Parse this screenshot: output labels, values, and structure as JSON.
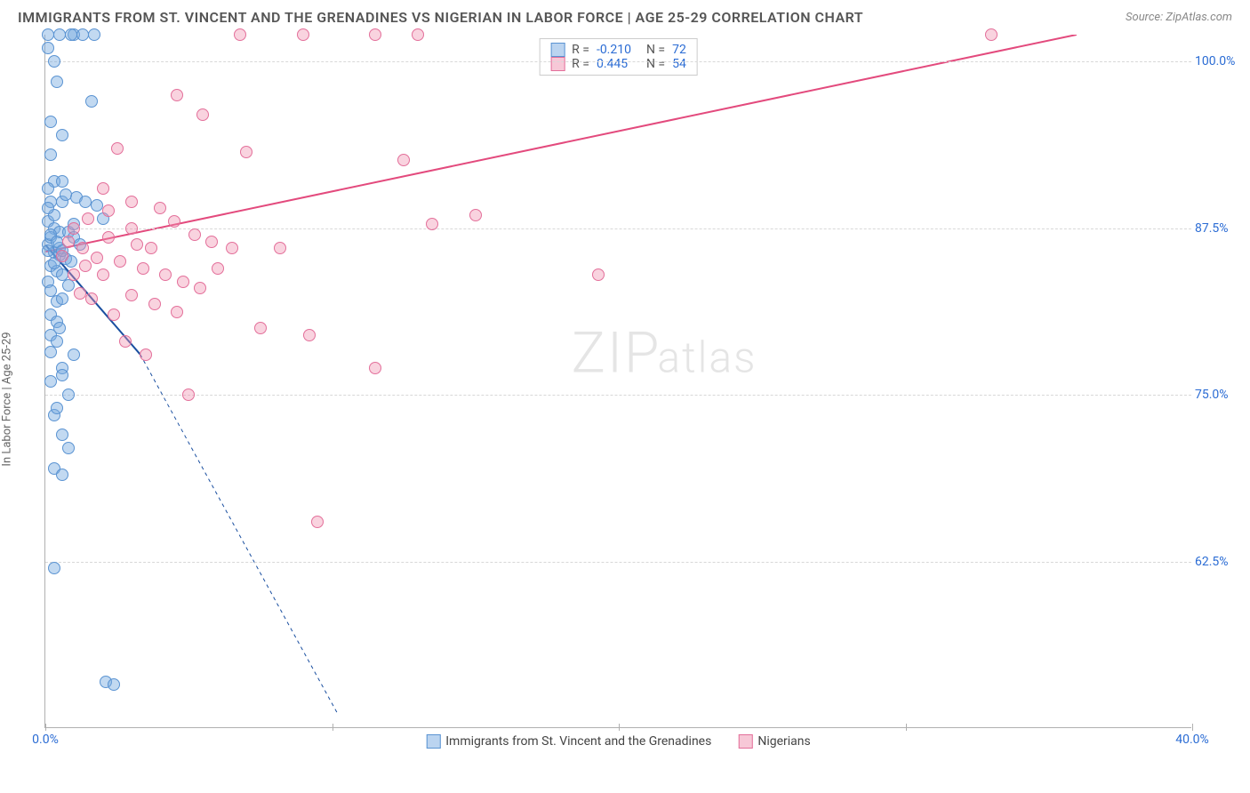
{
  "title": "IMMIGRANTS FROM ST. VINCENT AND THE GRENADINES VS NIGERIAN IN LABOR FORCE | AGE 25-29 CORRELATION CHART",
  "source": "Source: ZipAtlas.com",
  "watermark_zip": "ZIP",
  "watermark_atlas": "atlas",
  "yaxis_label": "In Labor Force | Age 25-29",
  "chart": {
    "type": "scatter",
    "xlim": [
      0,
      40
    ],
    "ylim": [
      50,
      102
    ],
    "ytick_values": [
      62.5,
      75.0,
      87.5,
      100.0
    ],
    "ytick_labels": [
      "62.5%",
      "75.0%",
      "87.5%",
      "100.0%"
    ],
    "xtick_values": [
      0,
      10,
      20,
      30,
      40
    ],
    "xtick_labels": [
      "0.0%",
      "",
      "",
      "",
      "40.0%"
    ],
    "background_color": "#ffffff",
    "grid_color": "#d8d8d8",
    "axis_color": "#b0b0b0",
    "label_color": "#2b6cd4",
    "marker_size": 14,
    "marker_opacity": 0.45
  },
  "series_a": {
    "name": "Immigrants from St. Vincent and the Grenadines",
    "fill": "#78aae1",
    "stroke": "#5a93d2",
    "R": "-0.210",
    "N": "72",
    "trend": {
      "x1": 0,
      "y1": 86.2,
      "x2": 3.3,
      "y2": 78.0,
      "color": "#1a4fa0",
      "width": 2,
      "dash": ""
    },
    "trend_ext": {
      "x1": 3.3,
      "y1": 78.0,
      "x2": 10.2,
      "y2": 51.0,
      "color": "#1a4fa0",
      "width": 1,
      "dash": "4,4"
    },
    "points": [
      [
        0.1,
        102
      ],
      [
        0.5,
        102
      ],
      [
        1.0,
        102
      ],
      [
        1.3,
        102
      ],
      [
        1.7,
        102
      ],
      [
        0.9,
        102
      ],
      [
        1.6,
        97.0
      ],
      [
        0.6,
        94.5
      ],
      [
        0.2,
        93.0
      ],
      [
        0.2,
        95.5
      ],
      [
        0.3,
        91.0
      ],
      [
        0.6,
        91.0
      ],
      [
        0.2,
        89.5
      ],
      [
        0.6,
        89.5
      ],
      [
        1.1,
        89.8
      ],
      [
        1.4,
        89.5
      ],
      [
        1.8,
        89.2
      ],
      [
        2.0,
        88.2
      ],
      [
        0.1,
        88.0
      ],
      [
        0.3,
        87.5
      ],
      [
        0.5,
        87.2
      ],
      [
        0.8,
        87.2
      ],
      [
        1.0,
        86.8
      ],
      [
        1.2,
        86.3
      ],
      [
        0.1,
        86.3
      ],
      [
        0.3,
        85.7
      ],
      [
        0.5,
        85.5
      ],
      [
        0.7,
        85.2
      ],
      [
        0.9,
        85.0
      ],
      [
        0.2,
        84.7
      ],
      [
        0.4,
        84.3
      ],
      [
        0.6,
        84.0
      ],
      [
        0.1,
        83.5
      ],
      [
        0.2,
        82.8
      ],
      [
        0.4,
        82.0
      ],
      [
        0.6,
        82.2
      ],
      [
        0.2,
        81.0
      ],
      [
        0.4,
        80.5
      ],
      [
        0.2,
        79.5
      ],
      [
        0.4,
        79.0
      ],
      [
        1.0,
        78.0
      ],
      [
        0.6,
        77.0
      ],
      [
        0.2,
        76.0
      ],
      [
        0.8,
        75.0
      ],
      [
        0.3,
        73.5
      ],
      [
        0.6,
        72.0
      ],
      [
        0.8,
        71.0
      ],
      [
        0.3,
        69.5
      ],
      [
        0.6,
        69.0
      ],
      [
        0.3,
        62.0
      ],
      [
        2.1,
        53.5
      ],
      [
        2.4,
        53.3
      ],
      [
        0.1,
        101.0
      ],
      [
        0.3,
        100.0
      ],
      [
        0.4,
        98.5
      ],
      [
        0.1,
        90.5
      ],
      [
        0.7,
        90.0
      ],
      [
        1.0,
        87.8
      ],
      [
        0.2,
        86.8
      ],
      [
        0.5,
        86.0
      ],
      [
        0.1,
        85.8
      ],
      [
        0.3,
        84.9
      ],
      [
        0.8,
        83.2
      ],
      [
        0.5,
        80.0
      ],
      [
        0.2,
        78.2
      ],
      [
        0.6,
        76.5
      ],
      [
        0.4,
        74.0
      ],
      [
        0.2,
        87.0
      ],
      [
        0.4,
        86.5
      ],
      [
        0.6,
        85.8
      ],
      [
        0.3,
        88.5
      ],
      [
        0.1,
        89.0
      ]
    ]
  },
  "series_b": {
    "name": "Nigerians",
    "fill": "#f091af",
    "stroke": "#e36f9a",
    "R": "0.445",
    "N": "54",
    "trend": {
      "x1": 0,
      "y1": 85.7,
      "x2": 36.0,
      "y2": 102.0,
      "color": "#e34a7d",
      "width": 2,
      "dash": ""
    },
    "points": [
      [
        6.8,
        102
      ],
      [
        9.0,
        102
      ],
      [
        11.5,
        102
      ],
      [
        13.0,
        102
      ],
      [
        33.0,
        102
      ],
      [
        4.6,
        97.5
      ],
      [
        5.5,
        96.0
      ],
      [
        2.5,
        93.5
      ],
      [
        7.0,
        93.2
      ],
      [
        12.5,
        92.6
      ],
      [
        2.0,
        90.5
      ],
      [
        3.0,
        89.5
      ],
      [
        4.0,
        89.0
      ],
      [
        15.0,
        88.5
      ],
      [
        13.5,
        87.8
      ],
      [
        4.5,
        88.0
      ],
      [
        5.2,
        87.0
      ],
      [
        5.8,
        86.5
      ],
      [
        6.5,
        86.0
      ],
      [
        8.2,
        86.0
      ],
      [
        2.2,
        86.8
      ],
      [
        3.2,
        86.3
      ],
      [
        1.3,
        86.0
      ],
      [
        1.8,
        85.3
      ],
      [
        2.6,
        85.0
      ],
      [
        3.4,
        84.5
      ],
      [
        4.2,
        84.0
      ],
      [
        4.8,
        83.5
      ],
      [
        5.4,
        83.0
      ],
      [
        3.0,
        82.5
      ],
      [
        3.8,
        81.8
      ],
      [
        4.6,
        81.2
      ],
      [
        2.4,
        81.0
      ],
      [
        1.6,
        82.2
      ],
      [
        1.0,
        84.0
      ],
      [
        1.4,
        84.7
      ],
      [
        0.6,
        85.4
      ],
      [
        0.8,
        86.5
      ],
      [
        7.5,
        80.0
      ],
      [
        9.2,
        79.5
      ],
      [
        2.8,
        79.0
      ],
      [
        3.5,
        78.0
      ],
      [
        11.5,
        77.0
      ],
      [
        5.0,
        75.0
      ],
      [
        19.3,
        84.0
      ],
      [
        9.5,
        65.5
      ],
      [
        1.0,
        87.5
      ],
      [
        1.5,
        88.2
      ],
      [
        2.2,
        88.8
      ],
      [
        3.0,
        87.5
      ],
      [
        3.7,
        86.0
      ],
      [
        6.0,
        84.5
      ],
      [
        2.0,
        84.0
      ],
      [
        1.2,
        82.6
      ]
    ]
  },
  "legend_top": {
    "r_label": "R =",
    "n_label": "N ="
  },
  "bottom_legend": {
    "label_a": "Immigrants from St. Vincent and the Grenadines",
    "label_b": "Nigerians"
  }
}
